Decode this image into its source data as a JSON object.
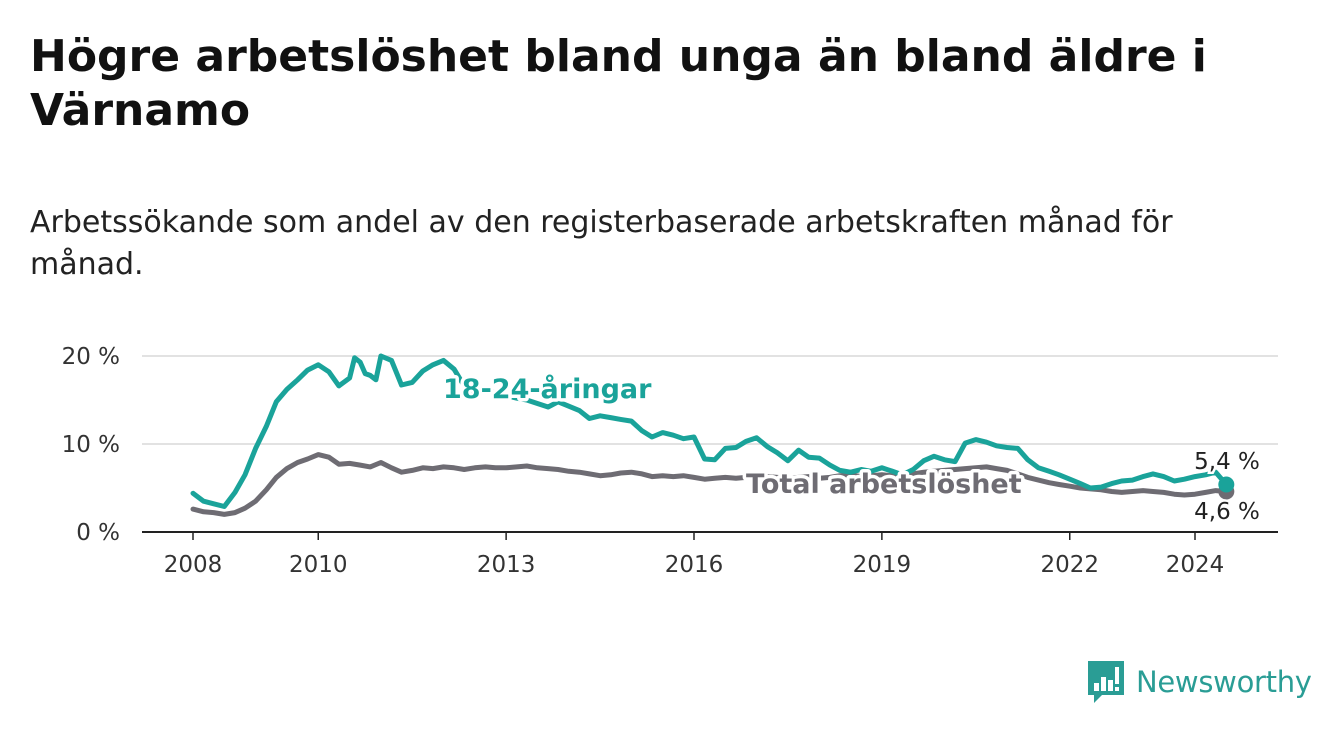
{
  "title": "Högre arbetslöshet bland unga än bland äldre i Värnamo",
  "subtitle": "Arbetssökande som andel av den registerbaserade arbetskraften månad för månad.",
  "brand": {
    "name": "Newsworthy",
    "icon": "newsworthy-logo-icon",
    "color": "#2a9d95"
  },
  "chart_data": {
    "type": "line",
    "ylim": [
      0,
      20
    ],
    "y_ticks": [
      {
        "value": 0,
        "label": "0 %"
      },
      {
        "value": 10,
        "label": "10 %"
      },
      {
        "value": 20,
        "label": "20 %"
      }
    ],
    "xlim": [
      2007.2,
      2025.3
    ],
    "x_ticks": [
      {
        "value": 2008,
        "label": "2008"
      },
      {
        "value": 2010,
        "label": "2010"
      },
      {
        "value": 2013,
        "label": "2013"
      },
      {
        "value": 2016,
        "label": "2016"
      },
      {
        "value": 2019,
        "label": "2019"
      },
      {
        "value": 2022,
        "label": "2022"
      },
      {
        "value": 2024,
        "label": "2024"
      }
    ],
    "grid": true,
    "series": [
      {
        "name": "18-24-åringar",
        "color": "#1aa39a",
        "end_label": "5,4 %",
        "x": [
          2008.0,
          2008.17,
          2008.33,
          2008.5,
          2008.67,
          2008.83,
          2009.0,
          2009.17,
          2009.33,
          2009.5,
          2009.67,
          2009.83,
          2010.0,
          2010.17,
          2010.33,
          2010.5,
          2010.58,
          2010.67,
          2010.75,
          2010.83,
          2010.92,
          2011.0,
          2011.17,
          2011.33,
          2011.5,
          2011.67,
          2011.83,
          2012.0,
          2012.17,
          2012.33,
          2012.5,
          2012.67,
          2012.83,
          2013.0,
          2013.17,
          2013.33,
          2013.5,
          2013.67,
          2013.83,
          2014.0,
          2014.17,
          2014.33,
          2014.5,
          2014.67,
          2014.83,
          2015.0,
          2015.17,
          2015.33,
          2015.5,
          2015.67,
          2015.83,
          2016.0,
          2016.17,
          2016.33,
          2016.5,
          2016.67,
          2016.83,
          2017.0,
          2017.17,
          2017.33,
          2017.5,
          2017.67,
          2017.83,
          2018.0,
          2018.17,
          2018.33,
          2018.5,
          2018.67,
          2018.83,
          2019.0,
          2019.17,
          2019.33,
          2019.5,
          2019.67,
          2019.83,
          2020.0,
          2020.17,
          2020.33,
          2020.5,
          2020.67,
          2020.83,
          2021.0,
          2021.17,
          2021.33,
          2021.5,
          2021.67,
          2021.83,
          2022.0,
          2022.17,
          2022.33,
          2022.5,
          2022.67,
          2022.83,
          2023.0,
          2023.17,
          2023.33,
          2023.5,
          2023.67,
          2023.83,
          2024.0,
          2024.17,
          2024.33,
          2024.5
        ],
        "values": [
          4.4,
          3.5,
          3.2,
          2.9,
          4.5,
          6.5,
          9.5,
          12.0,
          14.8,
          16.2,
          17.3,
          18.4,
          19.0,
          18.2,
          16.6,
          17.5,
          19.8,
          19.3,
          18.0,
          17.8,
          17.3,
          20.0,
          19.5,
          16.7,
          17.0,
          18.3,
          19.0,
          19.5,
          18.5,
          16.6,
          16.0,
          16.3,
          15.8,
          15.5,
          15.2,
          15.0,
          14.6,
          14.2,
          14.8,
          14.3,
          13.8,
          12.9,
          13.2,
          13.0,
          12.8,
          12.6,
          11.5,
          10.8,
          11.3,
          11.0,
          10.6,
          10.8,
          8.3,
          8.2,
          9.5,
          9.6,
          10.3,
          10.7,
          9.7,
          9.0,
          8.1,
          9.3,
          8.5,
          8.4,
          7.6,
          7.0,
          6.8,
          7.1,
          6.9,
          7.3,
          6.9,
          6.5,
          7.1,
          8.1,
          8.6,
          8.2,
          8.0,
          10.1,
          10.5,
          10.2,
          9.8,
          9.6,
          9.5,
          8.2,
          7.3,
          6.9,
          6.5,
          6.0,
          5.5,
          5.0,
          5.1,
          5.5,
          5.8,
          5.9,
          6.3,
          6.6,
          6.3,
          5.8,
          6.0,
          6.3,
          6.5,
          6.8,
          5.4
        ]
      },
      {
        "name": "Total arbetslöshet",
        "color": "#6e6c73",
        "end_label": "4,6 %",
        "x": [
          2008.0,
          2008.17,
          2008.33,
          2008.5,
          2008.67,
          2008.83,
          2009.0,
          2009.17,
          2009.33,
          2009.5,
          2009.67,
          2009.83,
          2010.0,
          2010.17,
          2010.33,
          2010.5,
          2010.67,
          2010.83,
          2011.0,
          2011.17,
          2011.33,
          2011.5,
          2011.67,
          2011.83,
          2012.0,
          2012.17,
          2012.33,
          2012.5,
          2012.67,
          2012.83,
          2013.0,
          2013.17,
          2013.33,
          2013.5,
          2013.67,
          2013.83,
          2014.0,
          2014.17,
          2014.33,
          2014.5,
          2014.67,
          2014.83,
          2015.0,
          2015.17,
          2015.33,
          2015.5,
          2015.67,
          2015.83,
          2016.0,
          2016.17,
          2016.33,
          2016.5,
          2016.67,
          2016.83,
          2017.0,
          2017.17,
          2017.33,
          2017.5,
          2017.67,
          2017.83,
          2018.0,
          2018.17,
          2018.33,
          2018.5,
          2018.67,
          2018.83,
          2019.0,
          2019.17,
          2019.33,
          2019.5,
          2019.67,
          2019.83,
          2020.0,
          2020.17,
          2020.33,
          2020.5,
          2020.67,
          2020.83,
          2021.0,
          2021.17,
          2021.33,
          2021.5,
          2021.67,
          2021.83,
          2022.0,
          2022.17,
          2022.33,
          2022.5,
          2022.67,
          2022.83,
          2023.0,
          2023.17,
          2023.33,
          2023.5,
          2023.67,
          2023.83,
          2024.0,
          2024.17,
          2024.33,
          2024.5
        ],
        "values": [
          2.6,
          2.3,
          2.2,
          2.0,
          2.2,
          2.7,
          3.5,
          4.8,
          6.2,
          7.2,
          7.9,
          8.3,
          8.8,
          8.5,
          7.7,
          7.8,
          7.6,
          7.4,
          7.9,
          7.3,
          6.8,
          7.0,
          7.3,
          7.2,
          7.4,
          7.3,
          7.1,
          7.3,
          7.4,
          7.3,
          7.3,
          7.4,
          7.5,
          7.3,
          7.2,
          7.1,
          6.9,
          6.8,
          6.6,
          6.4,
          6.5,
          6.7,
          6.8,
          6.6,
          6.3,
          6.4,
          6.3,
          6.4,
          6.2,
          6.0,
          6.1,
          6.2,
          6.1,
          6.2,
          6.4,
          6.3,
          6.2,
          6.1,
          6.2,
          6.3,
          6.1,
          6.2,
          6.4,
          6.5,
          6.3,
          6.4,
          6.5,
          6.4,
          6.3,
          6.6,
          6.8,
          6.9,
          7.0,
          7.1,
          7.2,
          7.3,
          7.4,
          7.2,
          7.0,
          6.6,
          6.2,
          5.9,
          5.6,
          5.4,
          5.2,
          5.0,
          4.9,
          4.8,
          4.6,
          4.5,
          4.6,
          4.7,
          4.6,
          4.5,
          4.3,
          4.2,
          4.3,
          4.5,
          4.7,
          4.6
        ]
      }
    ]
  }
}
